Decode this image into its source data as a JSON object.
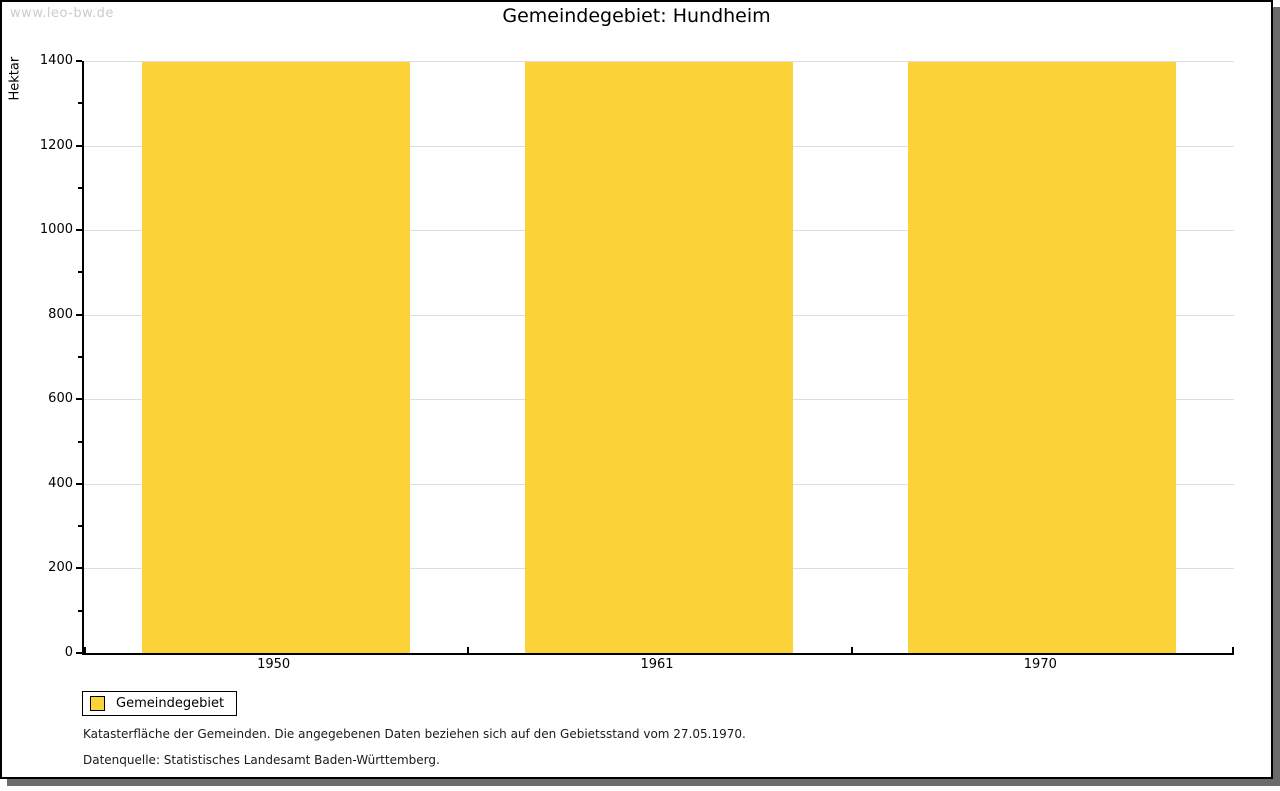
{
  "watermark": "www.leo-bw.de",
  "chart_data": {
    "type": "bar",
    "title": "Gemeindegebiet: Hundheim",
    "ylabel": "Hektar",
    "xlabel": "",
    "categories": [
      "1950",
      "1961",
      "1970"
    ],
    "series": [
      {
        "name": "Gemeindegebiet",
        "values": [
          1397,
          1397,
          1397
        ]
      }
    ],
    "ylim": [
      0,
      1400
    ],
    "ytick_major_step": 200,
    "ytick_minor_step": 100,
    "ytick_labels": [
      "0",
      "200",
      "400",
      "600",
      "800",
      "1000",
      "1200",
      "1400"
    ],
    "grid": true,
    "legend_position": "bottom-left",
    "bar_color": "#FBD338"
  },
  "legend": {
    "items": [
      {
        "label": "Gemeindegebiet",
        "color": "#FBD338"
      }
    ]
  },
  "footnotes": [
    "Katasterfläche der Gemeinden. Die angegebenen Daten beziehen sich auf den Gebietsstand vom 27.05.1970.",
    "Datenquelle: Statistisches Landesamt Baden-Württemberg."
  ],
  "colors": {
    "bar": "#FBD338",
    "gridline": "#DDDDDD",
    "axis": "#000000",
    "watermark": "#CBCBCB",
    "frame_shadow": "#6B6B6B"
  }
}
